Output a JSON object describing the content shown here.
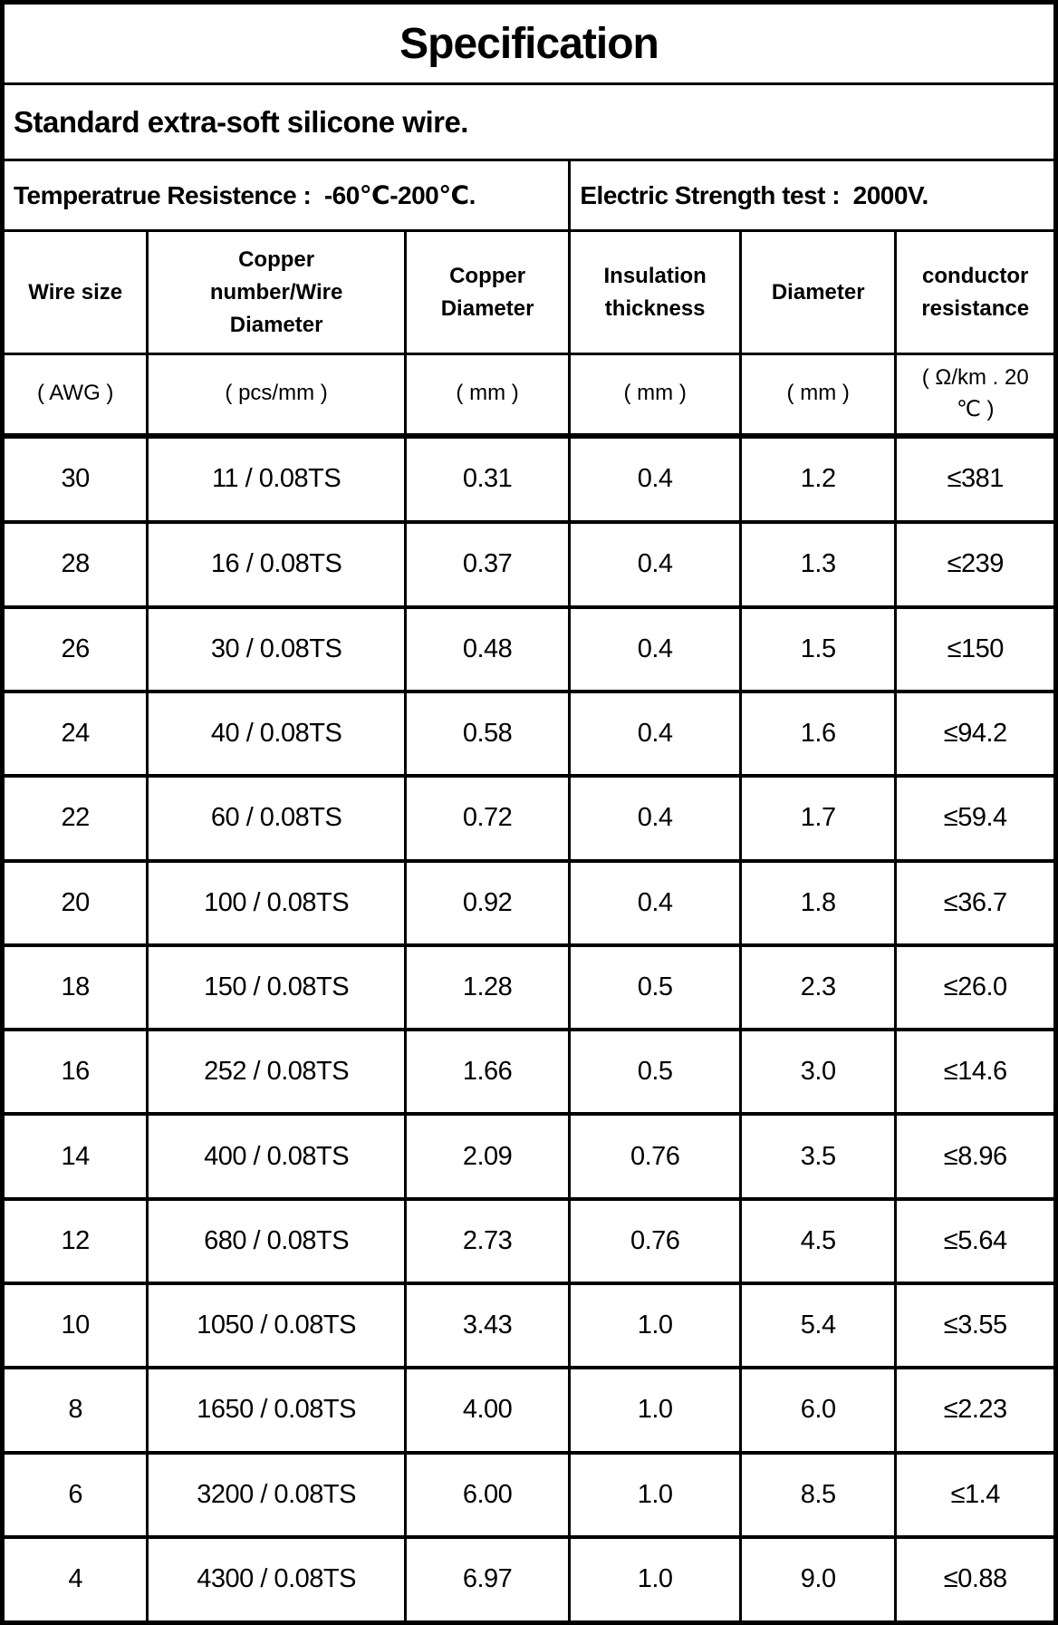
{
  "title": "Specification",
  "subtitle": "Standard extra-soft silicone wire.",
  "properties": {
    "temperature_resistance": "Temperatrue Resistence :  -60℃-200℃.",
    "electric_strength": "Electric Strength test :  2000V."
  },
  "table": {
    "headers": [
      "Wire size",
      "Copper\nnumber/Wire\nDiameter",
      "Copper\nDiameter",
      "Insulation\nthickness",
      "Diameter",
      "conductor\nresistance"
    ],
    "units": [
      "( AWG )",
      "( pcs/mm )",
      "( mm )",
      "( mm )",
      "( mm )",
      "( Ω/km . 20\n℃ )"
    ],
    "rows": [
      [
        "30",
        "11 / 0.08TS",
        "0.31",
        "0.4",
        "1.2",
        "≤381"
      ],
      [
        "28",
        "16 / 0.08TS",
        "0.37",
        "0.4",
        "1.3",
        "≤239"
      ],
      [
        "26",
        "30 / 0.08TS",
        "0.48",
        "0.4",
        "1.5",
        "≤150"
      ],
      [
        "24",
        "40 / 0.08TS",
        "0.58",
        "0.4",
        "1.6",
        "≤94.2"
      ],
      [
        "22",
        "60 / 0.08TS",
        "0.72",
        "0.4",
        "1.7",
        "≤59.4"
      ],
      [
        "20",
        "100 / 0.08TS",
        "0.92",
        "0.4",
        "1.8",
        "≤36.7"
      ],
      [
        "18",
        "150 / 0.08TS",
        "1.28",
        "0.5",
        "2.3",
        "≤26.0"
      ],
      [
        "16",
        "252 / 0.08TS",
        "1.66",
        "0.5",
        "3.0",
        "≤14.6"
      ],
      [
        "14",
        "400 / 0.08TS",
        "2.09",
        "0.76",
        "3.5",
        "≤8.96"
      ],
      [
        "12",
        "680 / 0.08TS",
        "2.73",
        "0.76",
        "4.5",
        "≤5.64"
      ],
      [
        "10",
        "1050 / 0.08TS",
        "3.43",
        "1.0",
        "5.4",
        "≤3.55"
      ],
      [
        "8",
        "1650 / 0.08TS",
        "4.00",
        "1.0",
        "6.0",
        "≤2.23"
      ],
      [
        "6",
        "3200 / 0.08TS",
        "6.00",
        "1.0",
        "8.5",
        "≤1.4"
      ],
      [
        "4",
        "4300 / 0.08TS",
        "6.97",
        "1.0",
        "9.0",
        "≤0.88"
      ]
    ]
  },
  "colors": {
    "text": "#000000",
    "border": "#000000",
    "background": "#ffffff"
  }
}
